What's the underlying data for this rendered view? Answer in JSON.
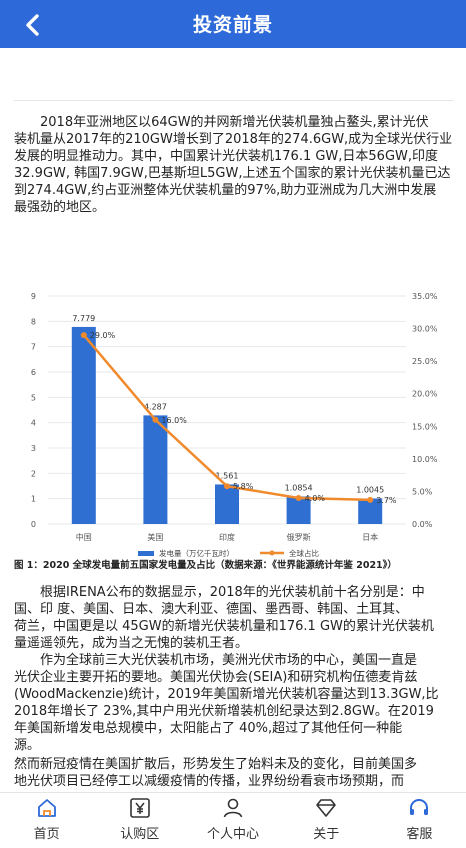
{
  "header": {
    "title": "投资前景"
  },
  "paragraphs": {
    "p1": [
      "　　2018年亚洲地区以64GW的并网新增光伏装机量独占鳌头,累计光伏",
      "装机量从2017年的210GW增长到了2018年的274.6GW,成为全球光伏行业",
      "发展的明显推动力。其中，中国累计光伏装机176.1 GW,日本56GW,印度",
      "32.9GW, 韩国7.9GW,巴基斯坦L5GW,上述五个国家的累计光伏装机量已达",
      "到274.4GW,约占亚洲整体光伏装机量的97%,助力亚洲成为几大洲中发展",
      "最强劲的地区。"
    ],
    "p2": [
      "　　根据IRENA公布的数据显示，2018年的光伏装机前十名分别是：中",
      "国、印 度、美国、日本、澳大利亚、德国、墨西哥、韩国、土耳其、",
      "荷兰，中国更是以 45GW的新增光伏装机量和176.1 GW的累计光伏装机",
      "量遥遥领先，成为当之无愧的装机王者。"
    ],
    "p3": [
      "　　作为全球前三大光伏装机市场，美洲光伏市场的中心，美国一直是",
      "光伏企业主要开拓的要地。美国光伏协会(SEIA)和研究机构伍德麦肯兹",
      "(WoodMackenzie)统计，2019年美国新增光伏装机容量达到13.3GW,比",
      "2018年增长了  23%,其中户用光伏新增装机创纪录达到2.8GW。在2019",
      "年美国新增发电总规模中，太阳能占了  40%,超过了其他任何一种能",
      "源。"
    ],
    "p4": [
      "然而新冠疫情在美国扩散后，形势发生了始料未及的变化，目前美国多",
      "地光伏项目已经停工以减缓疫情的传播，业界纷纷看衰市场预期，而"
    ]
  },
  "chart_data": {
    "type": "bar",
    "title": "",
    "caption": "图 1：2020 全球发电量前五国家发电量及占比（数据来源：《世界能源统计年鉴 2021》）",
    "categories": [
      "中国",
      "美国",
      "印度",
      "俄罗斯",
      "日本"
    ],
    "series": [
      {
        "name": "发电量（万亿千瓦时）",
        "type": "bar",
        "axis": "left",
        "values": [
          7.779,
          4.287,
          1.561,
          1.0854,
          1.0045
        ],
        "labels": [
          "7.779",
          "4.287",
          "1.561",
          "1.0854",
          "1.0045"
        ],
        "color": "#2f6fd2"
      },
      {
        "name": "全球占比",
        "type": "line",
        "axis": "right",
        "values": [
          29.0,
          16.0,
          5.8,
          4.0,
          3.7
        ],
        "labels": [
          "29.0%",
          "16.0%",
          "5.8%",
          "4.0%",
          "3.7%"
        ],
        "color": "#f08a2c"
      }
    ],
    "y_left": {
      "min": 0,
      "max": 9,
      "ticks": [
        "0",
        "1",
        "2",
        "3",
        "4",
        "5",
        "6",
        "7",
        "8",
        "9"
      ]
    },
    "y_right": {
      "min": 0,
      "max": 35,
      "ticks": [
        "0.0%",
        "5.0%",
        "10.0%",
        "15.0%",
        "20.0%",
        "25.0%",
        "30.0%",
        "35.0%"
      ]
    },
    "grid": true,
    "legend": "bottom"
  },
  "nav": {
    "items": [
      {
        "label": "首页",
        "icon": "home-icon"
      },
      {
        "label": "认购区",
        "icon": "yen-icon"
      },
      {
        "label": "个人中心",
        "icon": "user-icon"
      },
      {
        "label": "关于",
        "icon": "diamond-icon"
      },
      {
        "label": "客服",
        "icon": "headset-icon"
      }
    ],
    "active_color": "#2d69d8"
  }
}
